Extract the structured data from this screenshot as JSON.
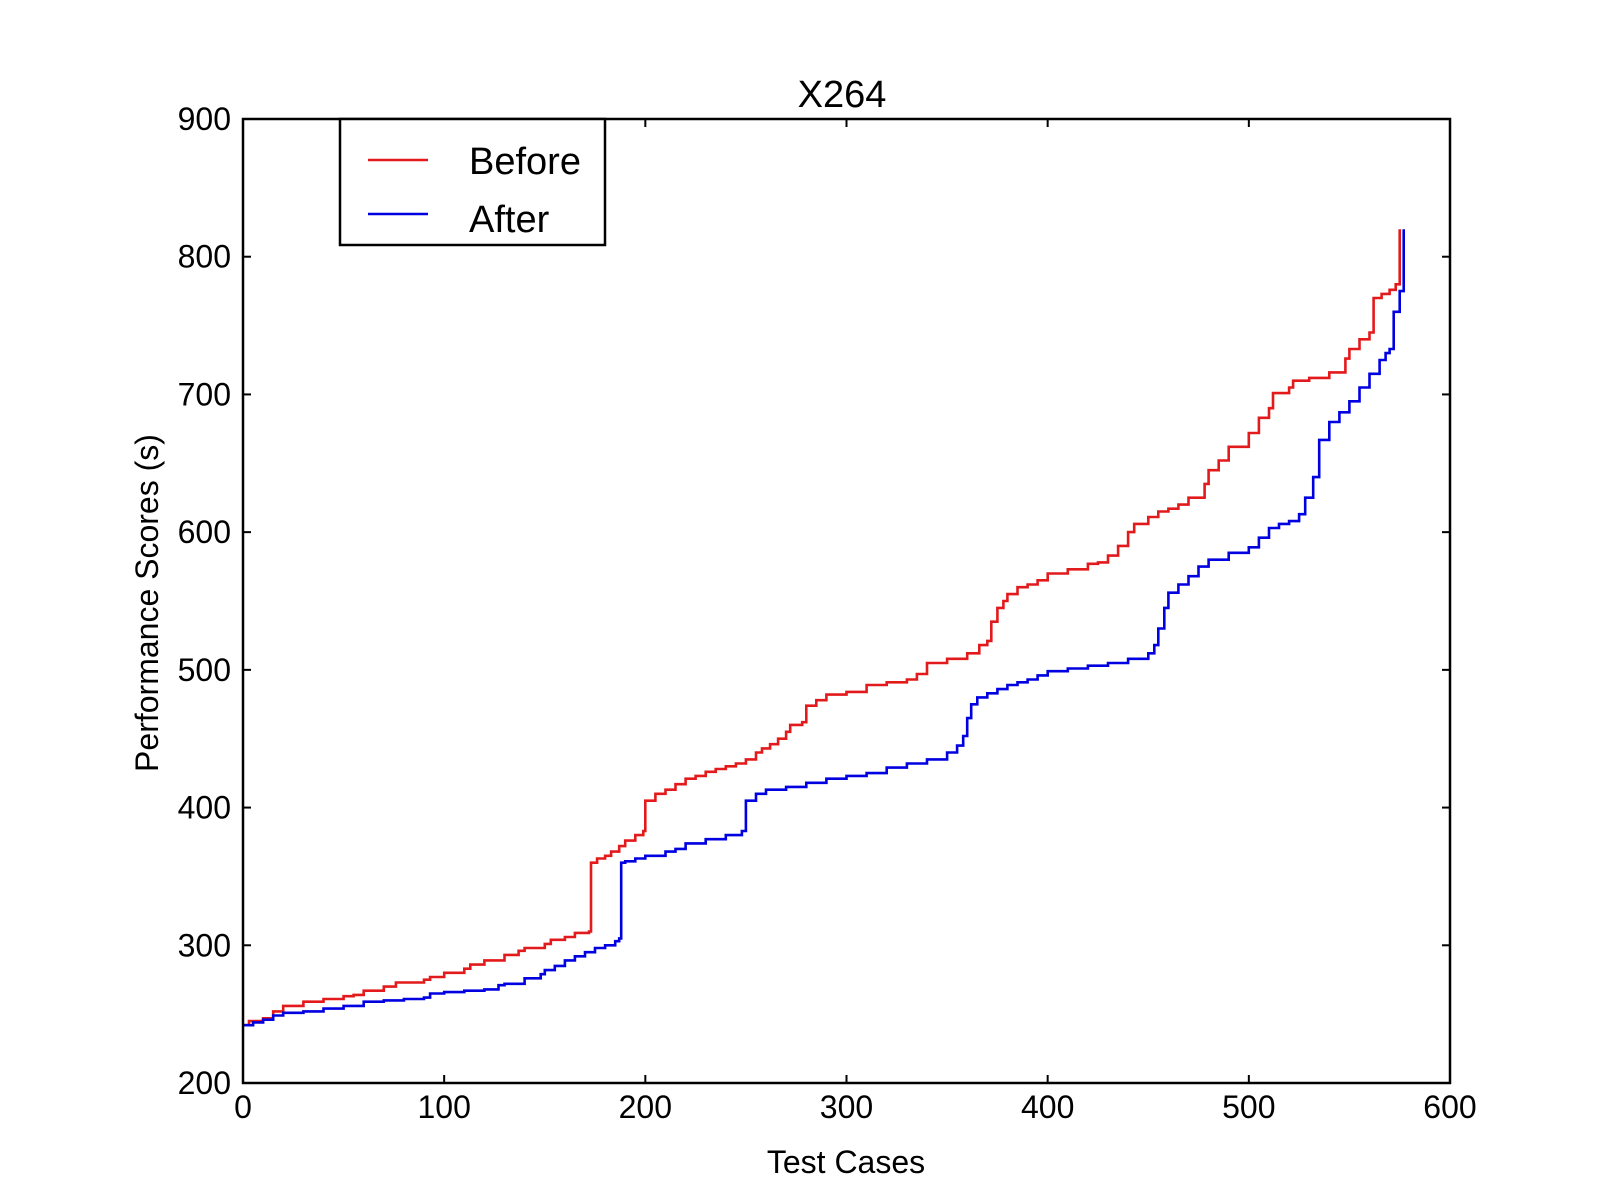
{
  "chart_data": {
    "type": "line",
    "title": "X264",
    "xlabel": "Test Cases",
    "ylabel": "Performance Scores (s)",
    "xlim": [
      0,
      600
    ],
    "ylim": [
      200,
      900
    ],
    "xticks": [
      0,
      100,
      200,
      300,
      400,
      500,
      600
    ],
    "yticks": [
      200,
      300,
      400,
      500,
      600,
      700,
      800,
      900
    ],
    "xtick_labels": [
      "0",
      "100",
      "200",
      "300",
      "400",
      "500",
      "600"
    ],
    "ytick_labels": [
      "200",
      "300",
      "400",
      "500",
      "600",
      "700",
      "800",
      "900"
    ],
    "grid": false,
    "legend_position": "upper-left",
    "series": [
      {
        "name": "Before",
        "color": "#e31a1c",
        "x": [
          0,
          3,
          10,
          15,
          20,
          30,
          40,
          50,
          55,
          60,
          70,
          76,
          90,
          93,
          100,
          110,
          113,
          120,
          127,
          130,
          137,
          140,
          150,
          153,
          160,
          165,
          172,
          173,
          176,
          180,
          183,
          187,
          190,
          195,
          199,
          200,
          205,
          210,
          215,
          220,
          225,
          230,
          235,
          240,
          245,
          250,
          255,
          258,
          262,
          266,
          270,
          272,
          278,
          280,
          285,
          290,
          300,
          310,
          320,
          330,
          335,
          340,
          350,
          360,
          366,
          370,
          372,
          375,
          378,
          380,
          385,
          390,
          395,
          400,
          410,
          420,
          425,
          430,
          435,
          440,
          443,
          450,
          455,
          460,
          465,
          470,
          478,
          480,
          485,
          490,
          500,
          505,
          510,
          512,
          520,
          522,
          530,
          540,
          548,
          550,
          555,
          560,
          562,
          566,
          570,
          573,
          575
        ],
        "y": [
          242,
          245,
          247,
          252,
          256,
          259,
          261,
          263,
          264,
          267,
          270,
          273,
          275,
          277,
          280,
          283,
          286,
          289,
          289,
          293,
          296,
          298,
          301,
          304,
          306,
          309,
          310,
          360,
          363,
          365,
          368,
          372,
          376,
          380,
          383,
          405,
          410,
          413,
          417,
          421,
          423,
          426,
          428,
          430,
          432,
          435,
          440,
          443,
          446,
          450,
          455,
          460,
          462,
          474,
          478,
          482,
          484,
          489,
          491,
          493,
          497,
          505,
          508,
          512,
          518,
          521,
          535,
          545,
          550,
          555,
          560,
          562,
          565,
          570,
          573,
          577,
          578,
          583,
          590,
          600,
          606,
          611,
          615,
          617,
          620,
          625,
          635,
          645,
          652,
          662,
          672,
          683,
          690,
          701,
          705,
          710,
          712,
          716,
          726,
          733,
          740,
          745,
          770,
          773,
          776,
          780,
          807
        ],
        "end": [
          575,
          820
        ]
      },
      {
        "name": "After",
        "color": "#0000e0",
        "x": [
          0,
          5,
          10,
          15,
          20,
          30,
          40,
          50,
          60,
          70,
          80,
          90,
          93,
          100,
          110,
          120,
          127,
          130,
          140,
          148,
          150,
          155,
          160,
          165,
          170,
          175,
          180,
          185,
          187,
          188,
          190,
          195,
          200,
          210,
          215,
          220,
          230,
          240,
          248,
          250,
          255,
          260,
          270,
          280,
          290,
          300,
          310,
          320,
          330,
          340,
          350,
          355,
          358,
          360,
          362,
          365,
          370,
          375,
          380,
          385,
          390,
          395,
          400,
          410,
          420,
          430,
          440,
          450,
          453,
          455,
          458,
          460,
          465,
          470,
          475,
          480,
          490,
          500,
          505,
          510,
          515,
          520,
          525,
          528,
          532,
          535,
          540,
          545,
          550,
          555,
          560,
          565,
          568,
          570,
          572,
          575
        ],
        "y": [
          242,
          244,
          246,
          249,
          251,
          252,
          254,
          256,
          259,
          260,
          261,
          262,
          265,
          266,
          267,
          268,
          271,
          272,
          276,
          279,
          282,
          285,
          289,
          292,
          295,
          298,
          300,
          303,
          305,
          360,
          361,
          363,
          365,
          368,
          370,
          374,
          377,
          380,
          383,
          405,
          410,
          413,
          415,
          418,
          421,
          423,
          425,
          429,
          432,
          435,
          440,
          445,
          452,
          465,
          475,
          480,
          483,
          486,
          489,
          491,
          493,
          496,
          499,
          501,
          503,
          505,
          508,
          512,
          518,
          530,
          545,
          556,
          562,
          568,
          575,
          580,
          585,
          589,
          596,
          603,
          606,
          608,
          613,
          625,
          640,
          667,
          680,
          687,
          695,
          705,
          715,
          725,
          730,
          733,
          760,
          775
        ],
        "end": [
          577,
          820
        ]
      }
    ]
  }
}
